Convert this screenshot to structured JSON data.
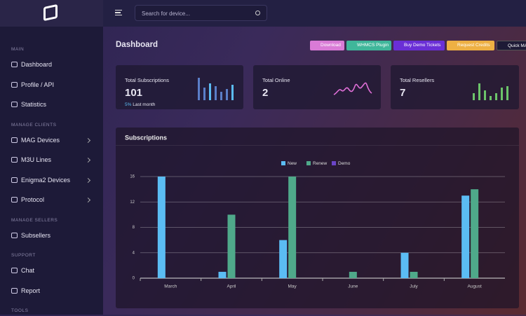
{
  "sidebar": {
    "sections": [
      {
        "title": "MAIN",
        "items": [
          "Dashboard",
          "Profile / API",
          "Statistics"
        ]
      },
      {
        "title": "MANAGE CLIENTS",
        "items": [
          "MAG Devices",
          "M3U Lines",
          "Enigma2 Devices",
          "Protocol"
        ]
      },
      {
        "title": "MANAGE SELLERS",
        "items": [
          "Subsellers"
        ]
      },
      {
        "title": "SUPPORT",
        "items": [
          "Chat",
          "Report"
        ]
      },
      {
        "title": "TOOLS",
        "items": []
      }
    ]
  },
  "topbar": {
    "search_placeholder": "Search for device..."
  },
  "header": {
    "title": "Dashboard",
    "buttons": [
      "Download",
      "WHMCS Plugin",
      "Buy Demo Tickets",
      "Request Credits",
      "Quick MA"
    ]
  },
  "cards": [
    {
      "label": "Total Subscriptions",
      "value": 101,
      "change": "5%",
      "change_note": "Last month"
    },
    {
      "label": "Total Online",
      "value": 2
    },
    {
      "label": "Total Resellers",
      "value": 7
    }
  ],
  "chart_data": {
    "type": "bar",
    "title": "Subscriptions",
    "categories": [
      "March",
      "April",
      "May",
      "June",
      "July",
      "August"
    ],
    "series": [
      {
        "name": "New",
        "color": "#5bbcf3",
        "values": [
          16,
          1,
          6,
          0,
          4,
          13
        ]
      },
      {
        "name": "Renew",
        "color": "#4fa98a",
        "values": [
          0,
          10,
          16,
          1,
          1,
          14
        ]
      },
      {
        "name": "Demo",
        "color": "#6b45c8",
        "values": [
          0,
          0,
          0,
          0,
          0,
          0
        ]
      }
    ],
    "ylim": [
      0,
      16
    ],
    "yticks": [
      0,
      4,
      8,
      12,
      16
    ],
    "grid": true
  }
}
